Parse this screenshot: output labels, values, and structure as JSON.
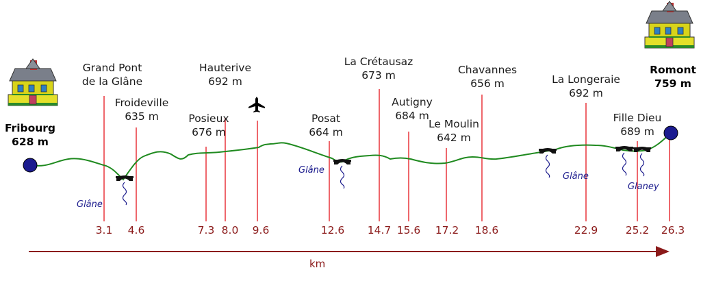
{
  "stations": [
    {
      "id": "fribourg",
      "name": "Fribourg",
      "alt": "628 m",
      "km": ""
    },
    {
      "id": "grand-pont",
      "name_lines": [
        "Grand Pont",
        "de la Glâne"
      ],
      "km": "3.1"
    },
    {
      "id": "froideville",
      "name": "Froideville",
      "alt": "635 m",
      "km": "4.6"
    },
    {
      "id": "posieux",
      "name": "Posieux",
      "alt": "676 m",
      "km": "7.3"
    },
    {
      "id": "hauterive",
      "name": "Hauterive",
      "alt": "692 m",
      "km": "8.0"
    },
    {
      "id": "airfield",
      "km": "9.6",
      "icon": "airplane-icon"
    },
    {
      "id": "posat",
      "name": "Posat",
      "alt": "664 m",
      "km": "12.6"
    },
    {
      "id": "la-cretausaz",
      "name": "La Crétausaz",
      "alt": "673 m",
      "km": "14.7"
    },
    {
      "id": "autigny",
      "name": "Autigny",
      "alt": "684 m",
      "km": "15.6"
    },
    {
      "id": "le-moulin",
      "name": "Le Moulin",
      "alt": "642 m",
      "km": "17.2"
    },
    {
      "id": "chavannes",
      "name": "Chavannes",
      "alt": "656 m",
      "km": "18.6"
    },
    {
      "id": "la-longeraie",
      "name": "La Longeraie",
      "alt": "692 m",
      "km": "22.9"
    },
    {
      "id": "fille-dieu",
      "name": "Fille Dieu",
      "alt": "689 m",
      "km": "25.2"
    },
    {
      "id": "romont",
      "name": "Romont",
      "alt": "759 m",
      "km": "26.3"
    }
  ],
  "rivers": [
    "Glâne",
    "Glâne",
    "Glâne",
    "Glaney"
  ],
  "axis_label": "km",
  "colors": {
    "profile": "#1f8a1f",
    "marker": "#e8343a",
    "axis": "#8b1a1a",
    "endpoint": "#1b1b8f",
    "river": "#1a1a8c"
  }
}
